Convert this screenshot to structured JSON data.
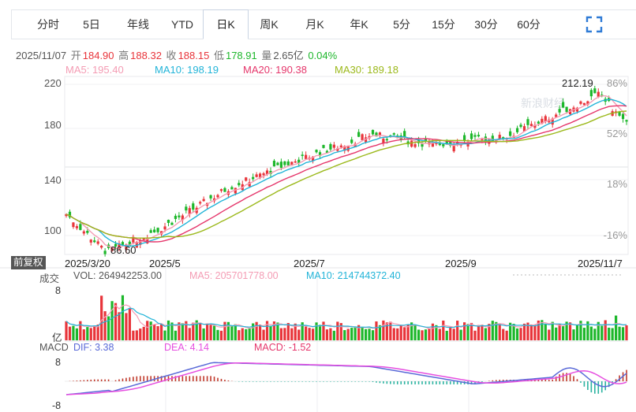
{
  "tabs": [
    {
      "label": "分时",
      "active": false
    },
    {
      "label": "5日",
      "active": false
    },
    {
      "label": "年线",
      "active": false
    },
    {
      "label": "YTD",
      "active": false
    },
    {
      "label": "日K",
      "active": true
    },
    {
      "label": "周K",
      "active": false
    },
    {
      "label": "月K",
      "active": false
    },
    {
      "label": "年K",
      "active": false
    },
    {
      "label": "5分",
      "active": false
    },
    {
      "label": "15分",
      "active": false
    },
    {
      "label": "30分",
      "active": false
    },
    {
      "label": "60分",
      "active": false
    }
  ],
  "info": {
    "date": "2025/11/07",
    "open_label": "开",
    "open": "184.90",
    "high_label": "高",
    "high": "188.32",
    "close_label": "收",
    "close": "188.15",
    "low_label": "低",
    "low": "178.91",
    "vol_label": "量",
    "vol": "2.65亿",
    "change": "0.04%"
  },
  "ma": {
    "ma5": "MA5: 195.40",
    "ma10": "MA10: 198.19",
    "ma20": "MA20: 190.38",
    "ma30": "MA30: 189.18"
  },
  "price_axis": {
    "labels": [
      "220",
      "180",
      "140",
      "100"
    ],
    "pct": [
      "86%",
      "52%",
      "18%",
      "-16%"
    ]
  },
  "annotations": {
    "high": "212.19",
    "low": "86.60"
  },
  "watermark": "新浪财经",
  "restore_label": "前复权",
  "date_axis": [
    "2025/3/20",
    "2025/5",
    "2025/7",
    "2025/9",
    "2025/11/7"
  ],
  "volume": {
    "title": "成交",
    "vol": "VOL: 264942253.00",
    "ma5": "MA5: 205701778.00",
    "ma10": "MA10: 214744372.40",
    "axis_top": "8",
    "axis_unit": "亿"
  },
  "macd": {
    "title": "MACD",
    "dif": "DIF: 3.38",
    "dea": "DEA: 4.14",
    "macd": "MACD: -1.52",
    "axis_top": "8",
    "axis_bottom": "-8"
  },
  "colors": {
    "up": "#e8343a",
    "down": "#1db72b",
    "ma5": "#f49cb4",
    "ma10": "#22b4d8",
    "ma20": "#e5366b",
    "ma30": "#9cb91c",
    "dif": "#5a6ad8",
    "dea": "#e64fe0"
  },
  "chart_data": {
    "type": "candlestick",
    "x_range": [
      "2025/3/20",
      "2025/11/7"
    ],
    "y_range": [
      80,
      225
    ],
    "key_points": [
      {
        "x": "2025/3/20",
        "y": 117
      },
      {
        "x": "2025/4/07",
        "y": 86.6
      },
      {
        "x": "2025/5",
        "y": 106
      },
      {
        "x": "2025/6",
        "y": 138
      },
      {
        "x": "2025/7",
        "y": 158
      },
      {
        "x": "2025/8",
        "y": 180
      },
      {
        "x": "2025/9",
        "y": 172
      },
      {
        "x": "2025/10",
        "y": 178
      },
      {
        "x": "2025/10/29",
        "y": 212.19
      },
      {
        "x": "2025/11/7",
        "y": 188.15
      }
    ]
  }
}
